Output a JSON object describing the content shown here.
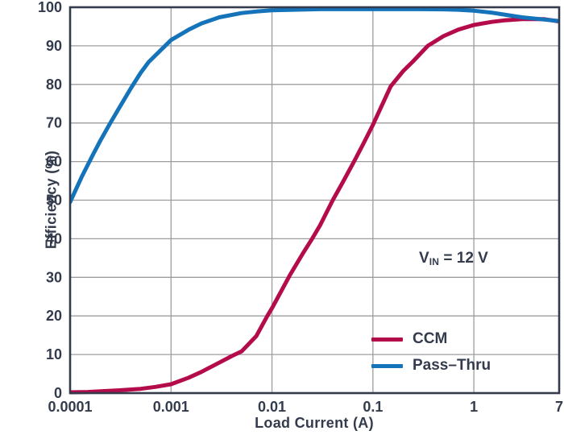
{
  "chart_data": {
    "type": "line",
    "title": "",
    "xlabel": "Load Current (A)",
    "ylabel": "Efficiency (%)",
    "x_scale": "log",
    "xlim": [
      0.0001,
      7
    ],
    "ylim": [
      0,
      100
    ],
    "grid": true,
    "x_ticks": [
      0.0001,
      0.001,
      0.01,
      0.1,
      1,
      7
    ],
    "x_tick_labels": [
      "0.0001",
      "0.001",
      "0.01",
      "0.1",
      "1",
      "7"
    ],
    "y_ticks": [
      0,
      10,
      20,
      30,
      40,
      50,
      60,
      70,
      80,
      90,
      100
    ],
    "y_tick_labels": [
      "0",
      "10",
      "20",
      "30",
      "40",
      "50",
      "60",
      "70",
      "80",
      "90",
      "100"
    ],
    "annotation": {
      "v": "V",
      "sub": "IN",
      "rest": " = 12 V"
    },
    "legend": {
      "position": "inside-bottom-right",
      "entries": [
        {
          "label": "CCM",
          "color": "#B40C4B"
        },
        {
          "label": "Pass–Thru",
          "color": "#1473B9"
        }
      ]
    },
    "series": [
      {
        "name": "CCM",
        "color": "#B40C4B",
        "points": [
          [
            0.0001,
            0.2
          ],
          [
            0.00015,
            0.3
          ],
          [
            0.0002,
            0.45
          ],
          [
            0.0003,
            0.7
          ],
          [
            0.0005,
            1.1
          ],
          [
            0.0007,
            1.6
          ],
          [
            0.001,
            2.3
          ],
          [
            0.0015,
            4.0
          ],
          [
            0.002,
            5.5
          ],
          [
            0.003,
            7.9
          ],
          [
            0.004,
            9.6
          ],
          [
            0.005,
            10.8
          ],
          [
            0.007,
            14.8
          ],
          [
            0.009,
            20.0
          ],
          [
            0.01,
            22.0
          ],
          [
            0.015,
            30.5
          ],
          [
            0.02,
            36.0
          ],
          [
            0.025,
            40.0
          ],
          [
            0.03,
            43.5
          ],
          [
            0.04,
            50.0
          ],
          [
            0.05,
            54.5
          ],
          [
            0.065,
            60.0
          ],
          [
            0.08,
            64.5
          ],
          [
            0.1,
            69.5
          ],
          [
            0.15,
            79.5
          ],
          [
            0.2,
            83.5
          ],
          [
            0.25,
            86.0
          ],
          [
            0.35,
            90.0
          ],
          [
            0.5,
            92.5
          ],
          [
            0.7,
            94.2
          ],
          [
            1,
            95.4
          ],
          [
            1.5,
            96.2
          ],
          [
            2,
            96.6
          ],
          [
            3,
            96.9
          ],
          [
            5,
            96.9
          ],
          [
            7,
            96.3
          ]
        ]
      },
      {
        "name": "Pass–Thru",
        "color": "#1473B9",
        "points": [
          [
            0.0001,
            49.5
          ],
          [
            0.00013,
            56.0
          ],
          [
            0.00017,
            62.0
          ],
          [
            0.0002,
            65.5
          ],
          [
            0.00025,
            70.0
          ],
          [
            0.0003,
            73.5
          ],
          [
            0.0004,
            79.0
          ],
          [
            0.0005,
            83.0
          ],
          [
            0.0006,
            85.8
          ],
          [
            0.0008,
            89.0
          ],
          [
            0.001,
            91.5
          ],
          [
            0.0015,
            94.2
          ],
          [
            0.002,
            95.8
          ],
          [
            0.003,
            97.4
          ],
          [
            0.005,
            98.5
          ],
          [
            0.007,
            98.9
          ],
          [
            0.01,
            99.2
          ],
          [
            0.02,
            99.4
          ],
          [
            0.03,
            99.5
          ],
          [
            0.05,
            99.5
          ],
          [
            0.1,
            99.5
          ],
          [
            0.2,
            99.5
          ],
          [
            0.3,
            99.5
          ],
          [
            0.5,
            99.45
          ],
          [
            0.7,
            99.35
          ],
          [
            1,
            99.1
          ],
          [
            1.5,
            98.6
          ],
          [
            2,
            98.1
          ],
          [
            3,
            97.4
          ],
          [
            5,
            96.8
          ],
          [
            7,
            96.4
          ]
        ]
      }
    ],
    "colors": {
      "axis_text": "#333B4D",
      "plot_border": "#333B4D",
      "gridline": "#9D9D9D",
      "background": "#FFFFFF"
    }
  }
}
